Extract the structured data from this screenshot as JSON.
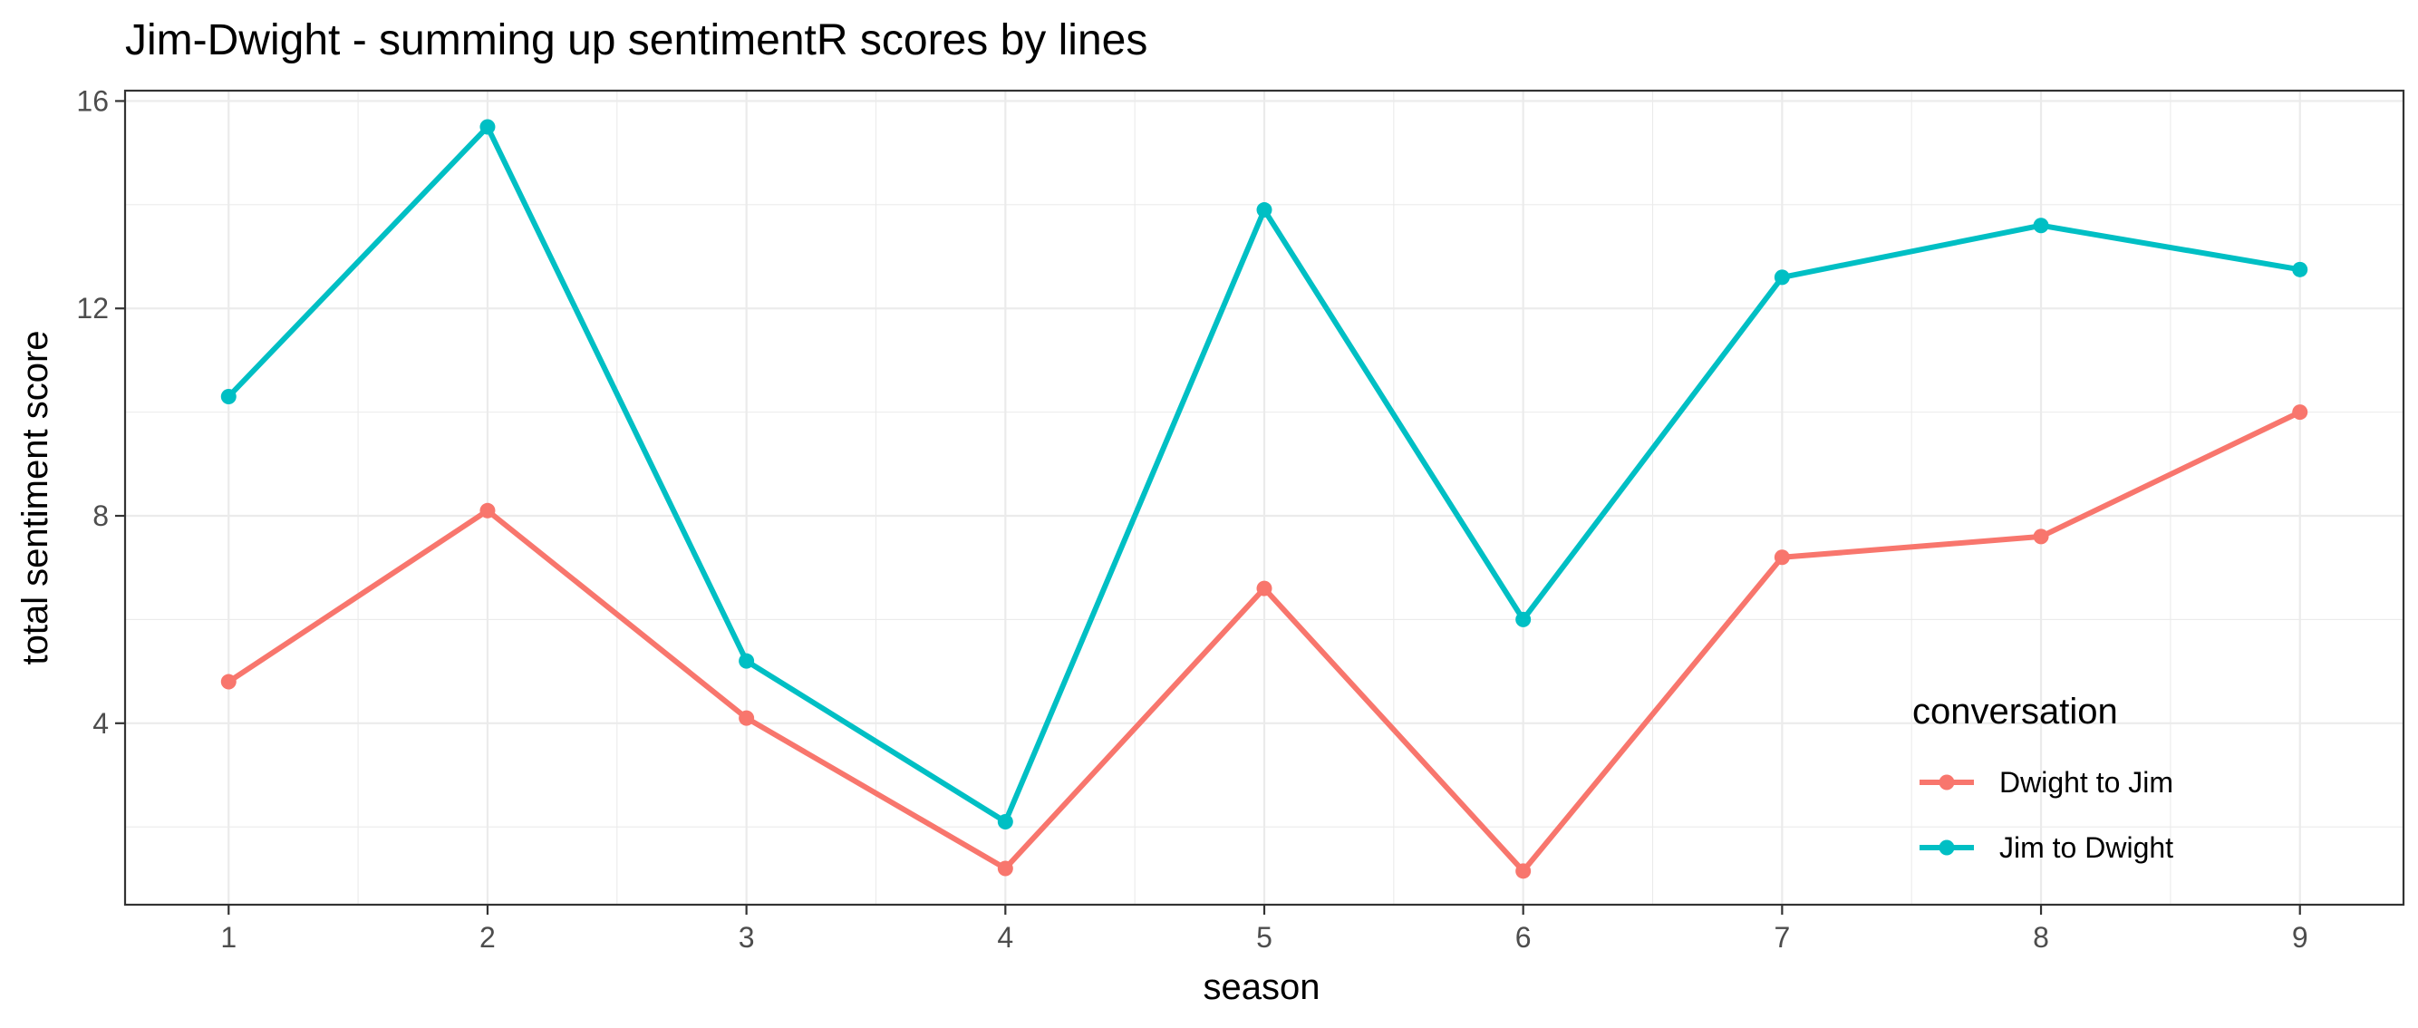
{
  "chart_data": {
    "type": "line",
    "title": "Jim-Dwight - summing up sentimentR scores by lines",
    "xlabel": "season",
    "ylabel": "total sentiment score",
    "x": [
      1,
      2,
      3,
      4,
      5,
      6,
      7,
      8,
      9
    ],
    "xlim": [
      0.6,
      9.4
    ],
    "ylim": [
      0.5,
      16.2
    ],
    "yticks": [
      4,
      8,
      12,
      16
    ],
    "yminor": [
      2,
      6,
      10,
      14
    ],
    "grid": true,
    "legend": {
      "title": "conversation",
      "placement": "inside-bottom-right"
    },
    "series": [
      {
        "name": "Dwight to Jim",
        "color": "#F8766D",
        "values": [
          4.8,
          8.1,
          4.1,
          1.2,
          6.6,
          1.15,
          7.2,
          7.6,
          10.0
        ]
      },
      {
        "name": "Jim to Dwight",
        "color": "#00BFC4",
        "values": [
          10.3,
          15.5,
          5.2,
          2.1,
          13.9,
          6.0,
          12.6,
          13.6,
          12.75
        ]
      }
    ]
  }
}
